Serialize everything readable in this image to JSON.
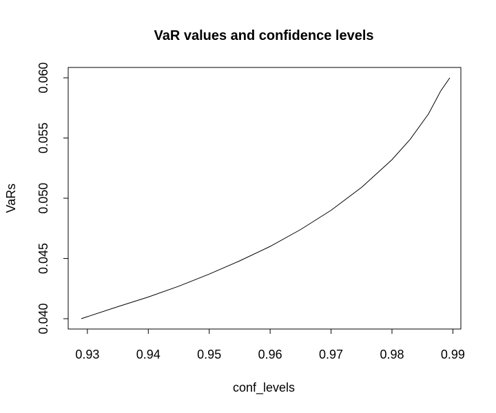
{
  "chart_data": {
    "type": "line",
    "title": "VaR values and confidence levels",
    "xlabel": "conf_levels",
    "ylabel": "VaRs",
    "xlim": [
      0.929,
      0.9895
    ],
    "ylim": [
      0.04,
      0.06
    ],
    "grid": false,
    "x_ticks": [
      "0.93",
      "0.94",
      "0.95",
      "0.96",
      "0.97",
      "0.98",
      "0.99"
    ],
    "y_ticks": [
      "0.040",
      "0.045",
      "0.050",
      "0.055",
      "0.060"
    ],
    "x_tick_values": [
      0.93,
      0.94,
      0.95,
      0.96,
      0.97,
      0.98,
      0.99
    ],
    "y_tick_values": [
      0.04,
      0.045,
      0.05,
      0.055,
      0.06
    ],
    "line_color": "#000000",
    "series": [
      {
        "x": [
          0.929,
          0.935,
          0.94,
          0.945,
          0.95,
          0.955,
          0.96,
          0.965,
          0.97,
          0.975,
          0.98,
          0.983,
          0.986,
          0.988,
          0.9895
        ],
        "y": [
          0.04,
          0.041,
          0.0418,
          0.0427,
          0.0437,
          0.0448,
          0.046,
          0.0474,
          0.049,
          0.0509,
          0.0532,
          0.0549,
          0.057,
          0.0589,
          0.06
        ]
      }
    ]
  }
}
